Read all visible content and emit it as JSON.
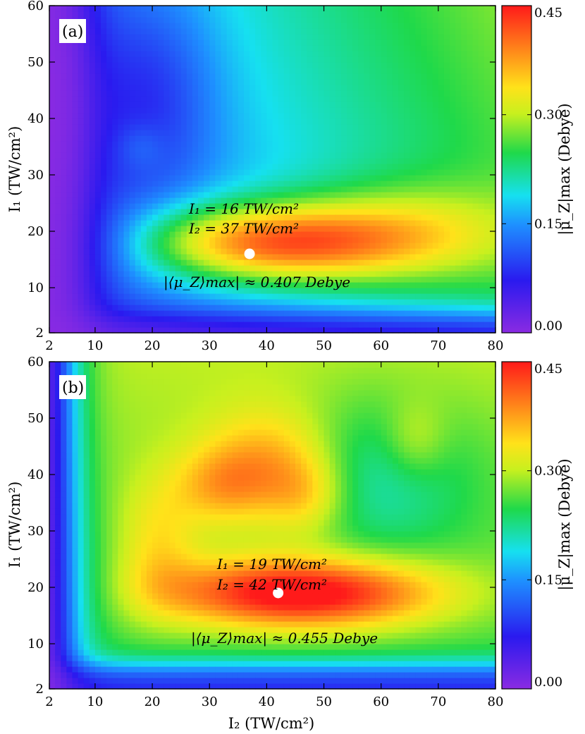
{
  "chart_data": [
    {
      "type": "heatmap",
      "panel_label": "(a)",
      "xlabel": "",
      "ylabel": "I₁ (TW/cm²)",
      "xlim": [
        2,
        80
      ],
      "ylim": [
        2,
        60
      ],
      "xticks": [
        2,
        10,
        20,
        30,
        40,
        50,
        60,
        70,
        80
      ],
      "yticks": [
        2,
        10,
        20,
        30,
        40,
        50,
        60
      ],
      "colorbar": {
        "label": "|μ_Z|max (Debye)",
        "range": [
          0.0,
          0.45
        ],
        "ticks": [
          "0.00",
          "0.15",
          "0.30",
          "0.45"
        ],
        "colormap": "rainbow"
      },
      "max_point": {
        "x": 37,
        "y": 16,
        "value": 0.407
      },
      "annotations": [
        "I₁ = 16 TW/cm²",
        "I₂ = 37 TW/cm²",
        "|⟨μ_Z⟩max| ≈ 0.407 Debye"
      ]
    },
    {
      "type": "heatmap",
      "panel_label": "(b)",
      "xlabel": "I₂ (TW/cm²)",
      "ylabel": "I₁ (TW/cm²)",
      "xlim": [
        2,
        80
      ],
      "ylim": [
        2,
        60
      ],
      "xticks": [
        2,
        10,
        20,
        30,
        40,
        50,
        60,
        70,
        80
      ],
      "yticks": [
        2,
        10,
        20,
        30,
        40,
        50,
        60
      ],
      "colorbar": {
        "label": "|μ_Z|max (Debye)",
        "range": [
          0.0,
          0.45
        ],
        "ticks": [
          "0.00",
          "0.15",
          "0.30",
          "0.45"
        ],
        "colormap": "rainbow"
      },
      "max_point": {
        "x": 42,
        "y": 19,
        "value": 0.455
      },
      "annotations": [
        "I₁ = 19 TW/cm²",
        "I₂ = 42 TW/cm²",
        "|⟨μ_Z⟩max| ≈ 0.455 Debye"
      ]
    }
  ]
}
